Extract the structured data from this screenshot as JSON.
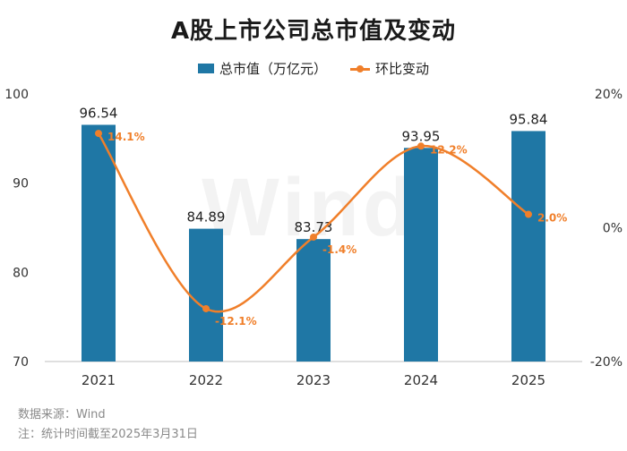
{
  "colors": {
    "bar": "#1f77a5",
    "line": "#f07f2a",
    "axis_text": "#333333",
    "label_text": "#222222",
    "pct_label": "#f07f2a",
    "baseline": "#bfbfbf"
  },
  "footer": {
    "source": "数据来源：Wind",
    "note": "注：统计时间截至2025年3月31日"
  },
  "chart_data": {
    "type": "bar",
    "title": "A股上市公司总市值及变动",
    "categories": [
      "2021",
      "2022",
      "2023",
      "2024",
      "2025"
    ],
    "series": [
      {
        "name": "总市值（万亿元）",
        "kind": "bar",
        "axis": "left",
        "values": [
          96.54,
          84.89,
          83.73,
          93.95,
          95.84
        ],
        "labels": [
          "96.54",
          "84.89",
          "83.73",
          "93.95",
          "95.84"
        ]
      },
      {
        "name": "环比变动",
        "kind": "line",
        "axis": "right",
        "values": [
          14.1,
          -12.1,
          -1.4,
          12.2,
          2.0
        ],
        "labels": [
          "14.1%",
          "-12.1%",
          "-1.4%",
          "12.2%",
          "2.0%"
        ]
      }
    ],
    "y_left": {
      "ylim": [
        70,
        100
      ],
      "ticks": [
        "70",
        "80",
        "90",
        "100"
      ]
    },
    "y_right": {
      "ylim": [
        -20,
        20
      ],
      "ticks": [
        "-20%",
        "0%",
        "20%"
      ]
    },
    "legend": "top-center",
    "grid": false,
    "watermark": "Wind"
  }
}
